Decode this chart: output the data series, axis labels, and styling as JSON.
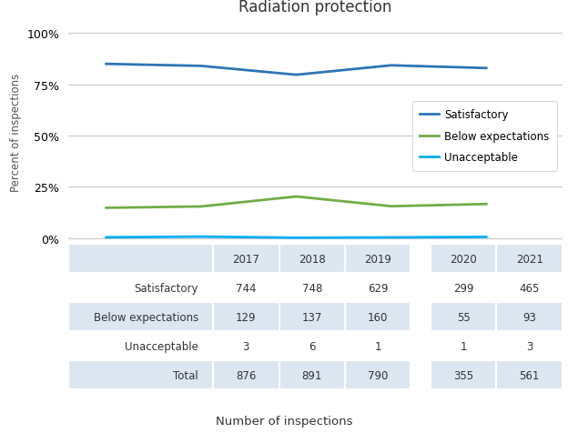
{
  "title": "Radiation protection",
  "years": [
    2017,
    2018,
    2019,
    2020,
    2021
  ],
  "satisfactory_pct": [
    84.93,
    83.95,
    79.62,
    84.23,
    82.89
  ],
  "below_pct": [
    14.73,
    15.38,
    20.25,
    15.49,
    16.58
  ],
  "unacceptable_pct": [
    0.34,
    0.67,
    0.13,
    0.28,
    0.53
  ],
  "satisfactory_color": "#2e75b6",
  "below_color": "#70ad47",
  "unacceptable_color": "#00b0f0",
  "ylabel": "Percent of inspections",
  "yticks": [
    0,
    25,
    50,
    75,
    100
  ],
  "ytick_labels": [
    "0%",
    "25%",
    "50%",
    "75%",
    "100%"
  ],
  "table_col_labels": [
    "",
    "2017",
    "2018",
    "2019",
    "",
    "2020",
    "2021"
  ],
  "table_rows": [
    [
      "Satisfactory",
      "744",
      "748",
      "629",
      "",
      "299",
      "465"
    ],
    [
      "Below expectations",
      "129",
      "137",
      "160",
      "",
      "55",
      "93"
    ],
    [
      "Unacceptable",
      "3",
      "6",
      "1",
      "",
      "1",
      "3"
    ],
    [
      "Total",
      "876",
      "891",
      "790",
      "",
      "355",
      "561"
    ]
  ],
  "table_xlabel": "Number of inspections",
  "legend_labels": [
    "Satisfactory",
    "Below expectations",
    "Unacceptable"
  ],
  "background_color": "#ffffff",
  "table_header_bg": "#dce6f1",
  "table_alt_bg": "#dce6f1",
  "table_white_bg": "#ffffff",
  "chart_border_color": "#c8c8c8"
}
